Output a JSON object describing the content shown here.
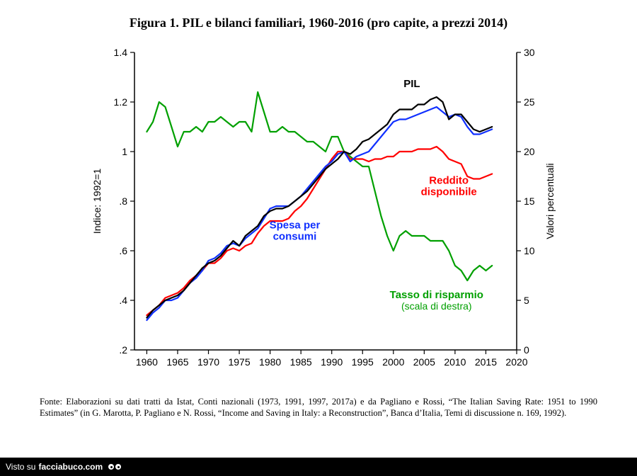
{
  "title": "Figura 1. PIL e bilanci familiari, 1960-2016 (pro capite, a prezzi 2014)",
  "caption": "Fonte: Elaborazioni su dati tratti da Istat, Conti nazionali (1973, 1991, 1997, 2017a) e da Pagliano e Rossi, “The Italian Saving Rate: 1951 to 1990 Estimates” (in G. Marotta, P. Pagliano e N. Rossi, “Income and Saving in Italy: a Reconstruction”, Banca d’Italia, Temi di discussione n. 169, 1992).",
  "footer": {
    "prefix": "Visto su",
    "site": "facciabuco.com"
  },
  "chart": {
    "type": "line",
    "background_color": "#ffffff",
    "plot_border_color": "#000000",
    "xlim": [
      1958,
      2020
    ],
    "ylim_left": [
      0.2,
      1.4
    ],
    "ylim_right": [
      0,
      30
    ],
    "x_ticks": [
      1960,
      1965,
      1970,
      1975,
      1980,
      1985,
      1990,
      1995,
      2000,
      2005,
      2010,
      2015,
      2020
    ],
    "y_left_ticks": [
      0.2,
      0.4,
      0.6,
      0.8,
      1.0,
      1.2,
      1.4
    ],
    "y_left_tick_labels": [
      ".2",
      ".4",
      ".6",
      ".8",
      "1",
      "1.2",
      "1.4"
    ],
    "y_right_ticks": [
      0,
      5,
      10,
      15,
      20,
      25,
      30
    ],
    "axis_left_label": "Indice: 1992=1",
    "axis_right_label": "Valori percentuali",
    "tick_fontsize": 14,
    "axis_label_fontsize": 14,
    "line_width": 2.2,
    "series": {
      "pil": {
        "label": "PIL",
        "color": "#000000",
        "axis": "left",
        "label_pos": {
          "x": 2003,
          "y_left": 1.26
        },
        "data": [
          [
            1960,
            0.33
          ],
          [
            1961,
            0.36
          ],
          [
            1962,
            0.38
          ],
          [
            1963,
            0.4
          ],
          [
            1964,
            0.41
          ],
          [
            1965,
            0.42
          ],
          [
            1966,
            0.44
          ],
          [
            1967,
            0.47
          ],
          [
            1968,
            0.5
          ],
          [
            1969,
            0.53
          ],
          [
            1970,
            0.55
          ],
          [
            1971,
            0.56
          ],
          [
            1972,
            0.58
          ],
          [
            1973,
            0.61
          ],
          [
            1974,
            0.64
          ],
          [
            1975,
            0.62
          ],
          [
            1976,
            0.66
          ],
          [
            1977,
            0.68
          ],
          [
            1978,
            0.7
          ],
          [
            1979,
            0.74
          ],
          [
            1980,
            0.76
          ],
          [
            1981,
            0.77
          ],
          [
            1982,
            0.77
          ],
          [
            1983,
            0.78
          ],
          [
            1984,
            0.8
          ],
          [
            1985,
            0.82
          ],
          [
            1986,
            0.84
          ],
          [
            1987,
            0.87
          ],
          [
            1988,
            0.9
          ],
          [
            1989,
            0.93
          ],
          [
            1990,
            0.95
          ],
          [
            1991,
            0.97
          ],
          [
            1992,
            1.0
          ],
          [
            1993,
            0.99
          ],
          [
            1994,
            1.01
          ],
          [
            1995,
            1.04
          ],
          [
            1996,
            1.05
          ],
          [
            1997,
            1.07
          ],
          [
            1998,
            1.09
          ],
          [
            1999,
            1.11
          ],
          [
            2000,
            1.15
          ],
          [
            2001,
            1.17
          ],
          [
            2002,
            1.17
          ],
          [
            2003,
            1.17
          ],
          [
            2004,
            1.19
          ],
          [
            2005,
            1.19
          ],
          [
            2006,
            1.21
          ],
          [
            2007,
            1.22
          ],
          [
            2008,
            1.2
          ],
          [
            2009,
            1.13
          ],
          [
            2010,
            1.15
          ],
          [
            2011,
            1.15
          ],
          [
            2012,
            1.12
          ],
          [
            2013,
            1.09
          ],
          [
            2014,
            1.08
          ],
          [
            2015,
            1.09
          ],
          [
            2016,
            1.1
          ]
        ]
      },
      "spesa": {
        "label_line1": "Spesa per",
        "label_line2": "consumi",
        "color": "#1030ff",
        "axis": "left",
        "label_pos": {
          "x": 1984,
          "y_left": 0.69
        },
        "data": [
          [
            1960,
            0.32
          ],
          [
            1961,
            0.35
          ],
          [
            1962,
            0.37
          ],
          [
            1963,
            0.4
          ],
          [
            1964,
            0.4
          ],
          [
            1965,
            0.41
          ],
          [
            1966,
            0.44
          ],
          [
            1967,
            0.47
          ],
          [
            1968,
            0.49
          ],
          [
            1969,
            0.52
          ],
          [
            1970,
            0.56
          ],
          [
            1971,
            0.57
          ],
          [
            1972,
            0.59
          ],
          [
            1973,
            0.62
          ],
          [
            1974,
            0.63
          ],
          [
            1975,
            0.62
          ],
          [
            1976,
            0.65
          ],
          [
            1977,
            0.67
          ],
          [
            1978,
            0.69
          ],
          [
            1979,
            0.73
          ],
          [
            1980,
            0.77
          ],
          [
            1981,
            0.78
          ],
          [
            1982,
            0.78
          ],
          [
            1983,
            0.78
          ],
          [
            1984,
            0.8
          ],
          [
            1985,
            0.82
          ],
          [
            1986,
            0.85
          ],
          [
            1987,
            0.88
          ],
          [
            1988,
            0.91
          ],
          [
            1989,
            0.94
          ],
          [
            1990,
            0.96
          ],
          [
            1991,
            0.99
          ],
          [
            1992,
            1.0
          ],
          [
            1993,
            0.96
          ],
          [
            1994,
            0.98
          ],
          [
            1995,
            0.99
          ],
          [
            1996,
            1.0
          ],
          [
            1997,
            1.03
          ],
          [
            1998,
            1.06
          ],
          [
            1999,
            1.09
          ],
          [
            2000,
            1.12
          ],
          [
            2001,
            1.13
          ],
          [
            2002,
            1.13
          ],
          [
            2003,
            1.14
          ],
          [
            2004,
            1.15
          ],
          [
            2005,
            1.16
          ],
          [
            2006,
            1.17
          ],
          [
            2007,
            1.18
          ],
          [
            2008,
            1.16
          ],
          [
            2009,
            1.14
          ],
          [
            2010,
            1.15
          ],
          [
            2011,
            1.14
          ],
          [
            2012,
            1.1
          ],
          [
            2013,
            1.07
          ],
          [
            2014,
            1.07
          ],
          [
            2015,
            1.08
          ],
          [
            2016,
            1.09
          ]
        ]
      },
      "reddito": {
        "label_line1": "Reddito",
        "label_line2": "disponibile",
        "color": "#ff0000",
        "axis": "left",
        "label_pos": {
          "x": 2009,
          "y_left": 0.87
        },
        "data": [
          [
            1960,
            0.34
          ],
          [
            1961,
            0.36
          ],
          [
            1962,
            0.38
          ],
          [
            1963,
            0.41
          ],
          [
            1964,
            0.42
          ],
          [
            1965,
            0.43
          ],
          [
            1966,
            0.45
          ],
          [
            1967,
            0.48
          ],
          [
            1968,
            0.5
          ],
          [
            1969,
            0.52
          ],
          [
            1970,
            0.55
          ],
          [
            1971,
            0.55
          ],
          [
            1972,
            0.57
          ],
          [
            1973,
            0.6
          ],
          [
            1974,
            0.61
          ],
          [
            1975,
            0.6
          ],
          [
            1976,
            0.62
          ],
          [
            1977,
            0.63
          ],
          [
            1978,
            0.67
          ],
          [
            1979,
            0.7
          ],
          [
            1980,
            0.72
          ],
          [
            1981,
            0.72
          ],
          [
            1982,
            0.72
          ],
          [
            1983,
            0.73
          ],
          [
            1984,
            0.76
          ],
          [
            1985,
            0.78
          ],
          [
            1986,
            0.81
          ],
          [
            1987,
            0.85
          ],
          [
            1988,
            0.89
          ],
          [
            1989,
            0.93
          ],
          [
            1990,
            0.97
          ],
          [
            1991,
            1.0
          ],
          [
            1992,
            1.0
          ],
          [
            1993,
            0.97
          ],
          [
            1994,
            0.97
          ],
          [
            1995,
            0.97
          ],
          [
            1996,
            0.96
          ],
          [
            1997,
            0.97
          ],
          [
            1998,
            0.97
          ],
          [
            1999,
            0.98
          ],
          [
            2000,
            0.98
          ],
          [
            2001,
            1.0
          ],
          [
            2002,
            1.0
          ],
          [
            2003,
            1.0
          ],
          [
            2004,
            1.01
          ],
          [
            2005,
            1.01
          ],
          [
            2006,
            1.01
          ],
          [
            2007,
            1.02
          ],
          [
            2008,
            1.0
          ],
          [
            2009,
            0.97
          ],
          [
            2010,
            0.96
          ],
          [
            2011,
            0.95
          ],
          [
            2012,
            0.9
          ],
          [
            2013,
            0.89
          ],
          [
            2014,
            0.89
          ],
          [
            2015,
            0.9
          ],
          [
            2016,
            0.91
          ]
        ]
      },
      "risparmio": {
        "label_line1": "Tasso di risparmio",
        "label_line2": "(scala di destra)",
        "color": "#00a000",
        "axis": "right",
        "label_pos": {
          "x": 2007,
          "y_right": 5.2
        },
        "data": [
          [
            1960,
            22.0
          ],
          [
            1961,
            23.0
          ],
          [
            1962,
            25.0
          ],
          [
            1963,
            24.5
          ],
          [
            1964,
            22.5
          ],
          [
            1965,
            20.5
          ],
          [
            1966,
            22.0
          ],
          [
            1967,
            22.0
          ],
          [
            1968,
            22.5
          ],
          [
            1969,
            22.0
          ],
          [
            1970,
            23.0
          ],
          [
            1971,
            23.0
          ],
          [
            1972,
            23.5
          ],
          [
            1973,
            23.0
          ],
          [
            1974,
            22.5
          ],
          [
            1975,
            23.0
          ],
          [
            1976,
            23.0
          ],
          [
            1977,
            22.0
          ],
          [
            1978,
            26.0
          ],
          [
            1979,
            24.0
          ],
          [
            1980,
            22.0
          ],
          [
            1981,
            22.0
          ],
          [
            1982,
            22.5
          ],
          [
            1983,
            22.0
          ],
          [
            1984,
            22.0
          ],
          [
            1985,
            21.5
          ],
          [
            1986,
            21.0
          ],
          [
            1987,
            21.0
          ],
          [
            1988,
            20.5
          ],
          [
            1989,
            20.0
          ],
          [
            1990,
            21.5
          ],
          [
            1991,
            21.5
          ],
          [
            1992,
            20.0
          ],
          [
            1993,
            19.5
          ],
          [
            1994,
            19.0
          ],
          [
            1995,
            18.5
          ],
          [
            1996,
            18.5
          ],
          [
            1997,
            16.0
          ],
          [
            1998,
            13.5
          ],
          [
            1999,
            11.5
          ],
          [
            2000,
            10.0
          ],
          [
            2001,
            11.5
          ],
          [
            2002,
            12.0
          ],
          [
            2003,
            11.5
          ],
          [
            2004,
            11.5
          ],
          [
            2005,
            11.5
          ],
          [
            2006,
            11.0
          ],
          [
            2007,
            11.0
          ],
          [
            2008,
            11.0
          ],
          [
            2009,
            10.0
          ],
          [
            2010,
            8.5
          ],
          [
            2011,
            8.0
          ],
          [
            2012,
            7.0
          ],
          [
            2013,
            8.0
          ],
          [
            2014,
            8.5
          ],
          [
            2015,
            8.0
          ],
          [
            2016,
            8.5
          ]
        ]
      }
    }
  }
}
